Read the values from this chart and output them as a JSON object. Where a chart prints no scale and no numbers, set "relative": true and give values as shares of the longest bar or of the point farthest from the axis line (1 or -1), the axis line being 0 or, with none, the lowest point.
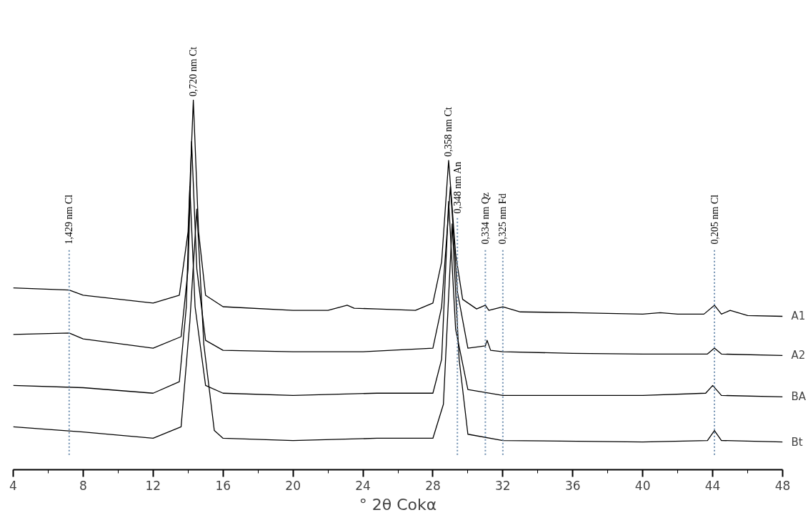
{
  "chart_data": {
    "type": "line",
    "relative": true,
    "xlabel": "° 2θ Cokα",
    "xlim": [
      4,
      48
    ],
    "xticks": [
      4,
      {
        "value": 6,
        "label": null
      },
      8,
      {
        "value": 10,
        "label": null
      },
      12,
      {
        "value": 14,
        "label": null
      },
      16,
      {
        "value": 18,
        "label": null
      },
      20,
      {
        "value": 22,
        "label": null
      },
      24,
      {
        "value": 26,
        "label": null
      },
      28,
      {
        "value": 30,
        "label": null
      },
      32,
      {
        "value": 34,
        "label": null
      },
      36,
      {
        "value": 38,
        "label": null
      },
      40,
      {
        "value": 42,
        "label": null
      },
      44,
      {
        "value": 46,
        "label": null
      },
      48
    ],
    "series": [
      {
        "name": "A1",
        "color": "#000000",
        "x": [
          4,
          7.2,
          8,
          12,
          13.5,
          14.0,
          14.3,
          14.6,
          15,
          16,
          20,
          22,
          23.1,
          23.5,
          24.8,
          27,
          28,
          28.5,
          28.9,
          29.3,
          29.7,
          30.5,
          31,
          31.2,
          32,
          33,
          36,
          40,
          41,
          42,
          43.5,
          44.1,
          44.5,
          45,
          46,
          48
        ],
        "values": [
          0.492,
          0.486,
          0.472,
          0.451,
          0.472,
          0.644,
          1,
          0.644,
          0.472,
          0.441,
          0.431,
          0.431,
          0.445,
          0.437,
          0.435,
          0.431,
          0.451,
          0.563,
          0.837,
          0.583,
          0.461,
          0.435,
          0.445,
          0.431,
          0.441,
          0.427,
          0.425,
          0.421,
          0.425,
          0.421,
          0.421,
          0.445,
          0.421,
          0.431,
          0.417,
          0.415
        ]
      },
      {
        "name": "A2",
        "color": "#000000",
        "x": [
          4,
          7.2,
          8,
          12,
          13.6,
          14.0,
          14.2,
          14.5,
          15,
          16,
          20,
          24,
          28,
          28.5,
          29.0,
          29.4,
          30,
          31,
          31.1,
          31.3,
          32,
          36,
          40,
          43.7,
          44.1,
          44.5,
          48
        ],
        "values": [
          0.366,
          0.37,
          0.354,
          0.329,
          0.36,
          0.543,
          0.888,
          0.543,
          0.35,
          0.323,
          0.319,
          0.319,
          0.329,
          0.441,
          0.766,
          0.482,
          0.329,
          0.335,
          0.35,
          0.323,
          0.319,
          0.315,
          0.313,
          0.313,
          0.329,
          0.313,
          0.309
        ]
      },
      {
        "name": "BA",
        "color": "#000000",
        "x": [
          4,
          8,
          12,
          13.5,
          13.9,
          14.1,
          14.4,
          15,
          16,
          20,
          24.8,
          28,
          28.5,
          28.9,
          29.3,
          30,
          32,
          36,
          40,
          43.6,
          44.0,
          44.5,
          48
        ],
        "values": [
          0.228,
          0.222,
          0.207,
          0.238,
          0.441,
          0.766,
          0.441,
          0.228,
          0.207,
          0.201,
          0.207,
          0.207,
          0.299,
          0.726,
          0.38,
          0.217,
          0.201,
          0.201,
          0.201,
          0.207,
          0.228,
          0.201,
          0.197
        ]
      },
      {
        "name": "Bt",
        "color": "#000000",
        "x": [
          4,
          8,
          12,
          13.6,
          14.1,
          14.5,
          14.9,
          15.5,
          16,
          20,
          24.8,
          28,
          28.6,
          29.1,
          29.5,
          30,
          32,
          40,
          43.7,
          44.1,
          44.5,
          48
        ],
        "values": [
          0.116,
          0.102,
          0.085,
          0.116,
          0.4,
          0.705,
          0.339,
          0.106,
          0.085,
          0.079,
          0.085,
          0.085,
          0.177,
          0.665,
          0.299,
          0.096,
          0.079,
          0.075,
          0.079,
          0.106,
          0.079,
          0.075
        ]
      }
    ],
    "annotations": [
      {
        "text": "0,720 nm Ct",
        "x": 14.3,
        "y": 1
      },
      {
        "text": "0,358 nm Ct",
        "x": 28.9,
        "y": 0.837
      }
    ],
    "ref_lines": [
      {
        "axis": "x",
        "value": 7.2,
        "label": "1,429 nm Cl",
        "color": "#6f8fb0",
        "line_style": "dotted"
      },
      {
        "axis": "x",
        "value": 29.4,
        "label": "0,348 nm An",
        "color": "#6f8fb0",
        "line_style": "dotted"
      },
      {
        "axis": "x",
        "value": 31.0,
        "label": "0,334 nm Qz",
        "color": "#6f8fb0",
        "line_style": "dotted"
      },
      {
        "axis": "x",
        "value": 32.0,
        "label": "0,325 nm Fd",
        "color": "#6f8fb0",
        "line_style": "dotted"
      },
      {
        "axis": "x",
        "value": 44.1,
        "label": "0,205 nm Cl",
        "color": "#6f8fb0",
        "line_style": "dotted"
      }
    ]
  }
}
